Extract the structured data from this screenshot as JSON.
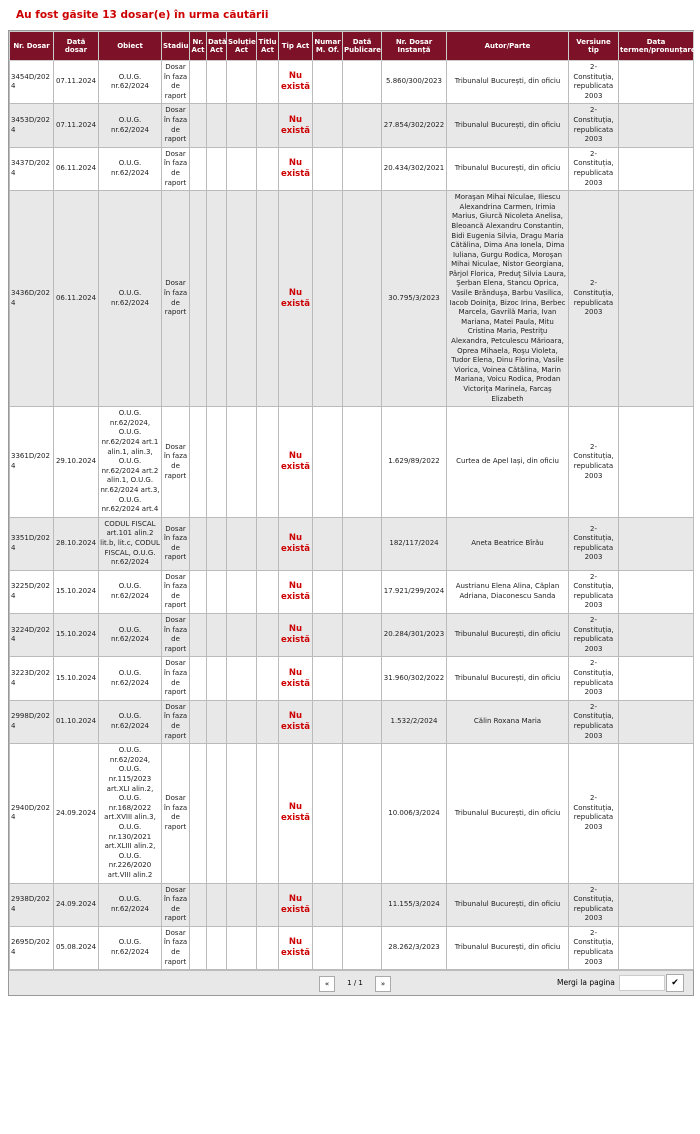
{
  "header": {
    "title": "Au fost găsite 13 dosar(e) în urma căutării"
  },
  "table": {
    "columns": [
      "Nr. Dosar",
      "Dată dosar",
      "Obiect",
      "Stadiu",
      "Nr. Act",
      "Dată Act",
      "Soluție Act",
      "Titlu Act",
      "Tip Act",
      "Numar M. Of.",
      "Dată Publicare",
      "Nr. Dosar Instanță",
      "Autor/Parte",
      "Versiune tip",
      "Data termen/pronunțare"
    ],
    "rows": [
      {
        "nr_dosar": "3454D/2024",
        "data_dosar": "07.11.2024",
        "obiect": "O.U.G. nr.62/2024",
        "stadiu": "Dosar în faza de raport",
        "tip_act": "Nu există",
        "nr_instanta": "5.860/300/2023",
        "autor": "Tribunalul București, din oficiu",
        "versiune": "2-Constituția, republicata 2003"
      },
      {
        "nr_dosar": "3453D/2024",
        "data_dosar": "07.11.2024",
        "obiect": "O.U.G. nr.62/2024",
        "stadiu": "Dosar în faza de raport",
        "tip_act": "Nu există",
        "nr_instanta": "27.854/302/2022",
        "autor": "Tribunalul București, din oficiu",
        "versiune": "2-Constituția, republicata 2003"
      },
      {
        "nr_dosar": "3437D/2024",
        "data_dosar": "06.11.2024",
        "obiect": "O.U.G. nr.62/2024",
        "stadiu": "Dosar în faza de raport",
        "tip_act": "Nu există",
        "nr_instanta": "20.434/302/2021",
        "autor": "Tribunalul București, din oficiu",
        "versiune": "2-Constituția, republicata 2003"
      },
      {
        "nr_dosar": "3436D/2024",
        "data_dosar": "06.11.2024",
        "obiect": "O.U.G. nr.62/2024",
        "stadiu": "Dosar în faza de raport",
        "tip_act": "Nu există",
        "nr_instanta": "30.795/3/2023",
        "autor": "Moraşan Mihai Niculae, Iliescu Alexandrina Carmen, Irimia Marius, Giurcă Nicoleta Anelisa, Bleoancă Alexandru Constantin, Bidi Eugenia Silvia, Dragu Maria Cătălina, Dima Ana Ionela, Dima Iuliana, Gurgu Rodica, Moroşan Mihai Niculae, Nistor Georgiana, Pârjol Florica, Preduţ Silvia Laura, Şerban Elena, Stancu Oprica, Vasile Brânduşa, Barbu Vasilica, Iacob Doiniţa, Bizoc Irina, Berbec Marcela, Gavrilă Maria, Ivan Mariana, Matei Paula, Mitu Cristina Maria, Pestriţu Alexandra, Petculescu Mărioara, Oprea Mihaela, Roşu Violeta, Tudor Elena, Dinu Florina, Vasile Viorica, Voinea Cătălina, Marin Mariana, Voicu Rodica, Prodan Victoriţa Marinela, Farcaş Elizabeth",
        "versiune": "2-Constituția, republicata 2003"
      },
      {
        "nr_dosar": "3361D/2024",
        "data_dosar": "29.10.2024",
        "obiect": "O.U.G. nr.62/2024, O.U.G. nr.62/2024 art.1 alin.1, alin.3, O.U.G. nr.62/2024 art.2 alin.1, O.U.G. nr.62/2024 art.3, O.U.G. nr.62/2024 art.4",
        "stadiu": "Dosar în faza de raport",
        "tip_act": "Nu există",
        "nr_instanta": "1.629/89/2022",
        "autor": "Curtea de Apel Iași, din oficiu",
        "versiune": "2-Constituția, republicata 2003"
      },
      {
        "nr_dosar": "3351D/2024",
        "data_dosar": "28.10.2024",
        "obiect": "CODUL FISCAL art.101 alin.2 lit.b, lit.c, CODUL FISCAL, O.U.G. nr.62/2024",
        "stadiu": "Dosar în faza de raport",
        "tip_act": "Nu există",
        "nr_instanta": "182/117/2024",
        "autor": "Aneta Beatrice Bîrău",
        "versiune": "2-Constituția, republicata 2003"
      },
      {
        "nr_dosar": "3225D/2024",
        "data_dosar": "15.10.2024",
        "obiect": "O.U.G. nr.62/2024",
        "stadiu": "Dosar în faza de raport",
        "tip_act": "Nu există",
        "nr_instanta": "17.921/299/2024",
        "autor": "Austrianu Elena Alina, Căplan Adriana, Diaconescu Sanda",
        "versiune": "2-Constituția, republicata 2003"
      },
      {
        "nr_dosar": "3224D/2024",
        "data_dosar": "15.10.2024",
        "obiect": "O.U.G. nr.62/2024",
        "stadiu": "Dosar în faza de raport",
        "tip_act": "Nu există",
        "nr_instanta": "20.284/301/2023",
        "autor": "Tribunalul București, din oficiu",
        "versiune": "2-Constituția, republicata 2003"
      },
      {
        "nr_dosar": "3223D/2024",
        "data_dosar": "15.10.2024",
        "obiect": "O.U.G. nr.62/2024",
        "stadiu": "Dosar în faza de raport",
        "tip_act": "Nu există",
        "nr_instanta": "31.960/302/2022",
        "autor": "Tribunalul București, din oficiu",
        "versiune": "2-Constituția, republicata 2003"
      },
      {
        "nr_dosar": "2998D/2024",
        "data_dosar": "01.10.2024",
        "obiect": "O.U.G. nr.62/2024",
        "stadiu": "Dosar în faza de raport",
        "tip_act": "Nu există",
        "nr_instanta": "1.532/2/2024",
        "autor": "Călin Roxana Maria",
        "versiune": "2-Constituția, republicata 2003"
      },
      {
        "nr_dosar": "2940D/2024",
        "data_dosar": "24.09.2024",
        "obiect": "O.U.G. nr.62/2024, O.U.G. nr.115/2023 art.XLI alin.2, O.U.G. nr.168/2022 art.XVIII alin.3, O.U.G. nr.130/2021 art.XLIII alin.2, O.U.G. nr.226/2020 art.VIII alin.2",
        "stadiu": "Dosar în faza de raport",
        "tip_act": "Nu există",
        "nr_instanta": "10.006/3/2024",
        "autor": "Tribunalul București, din oficiu",
        "versiune": "2-Constituția, republicata 2003"
      },
      {
        "nr_dosar": "2938D/2024",
        "data_dosar": "24.09.2024",
        "obiect": "O.U.G. nr.62/2024",
        "stadiu": "Dosar în faza de raport",
        "tip_act": "Nu există",
        "nr_instanta": "11.155/3/2024",
        "autor": "Tribunalul București, din oficiu",
        "versiune": "2-Constituția, republicata 2003"
      },
      {
        "nr_dosar": "2695D/2024",
        "data_dosar": "05.08.2024",
        "obiect": "O.U.G. nr.62/2024",
        "stadiu": "Dosar în faza de raport",
        "tip_act": "Nu există",
        "nr_instanta": "28.262/3/2023",
        "autor": "Tribunalul București, din oficiu",
        "versiune": "2-Constituția, republicata 2003"
      }
    ]
  },
  "pagination": {
    "prev": "«",
    "page": "1 / 1",
    "next": "»",
    "goto_label": "Mergi la pagina",
    "submit": "✔"
  }
}
